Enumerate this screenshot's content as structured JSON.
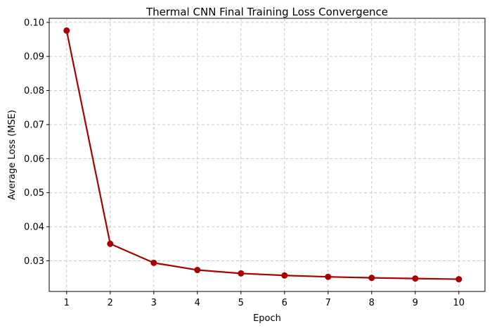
{
  "chart_data": {
    "type": "line",
    "title": "Thermal CNN Final Training Loss Convergence",
    "xlabel": "Epoch",
    "ylabel": "Average Loss (MSE)",
    "x": [
      1,
      2,
      3,
      4,
      5,
      6,
      7,
      8,
      9,
      10
    ],
    "series": [
      {
        "values": [
          0.0976,
          0.035,
          0.0294,
          0.0273,
          0.0263,
          0.0257,
          0.0253,
          0.025,
          0.0248,
          0.0246
        ],
        "color": "#aa0000",
        "marker": "circle"
      }
    ],
    "xticks": [
      1,
      2,
      3,
      4,
      5,
      6,
      7,
      8,
      9,
      10
    ],
    "yticks": [
      "0.03",
      "0.04",
      "0.05",
      "0.06",
      "0.07",
      "0.08",
      "0.09",
      "0.10"
    ],
    "xlim": [
      0.6,
      10.6
    ],
    "ylim": [
      0.021,
      0.1012
    ],
    "grid": true,
    "grid_style": "dashed",
    "legend": false
  }
}
